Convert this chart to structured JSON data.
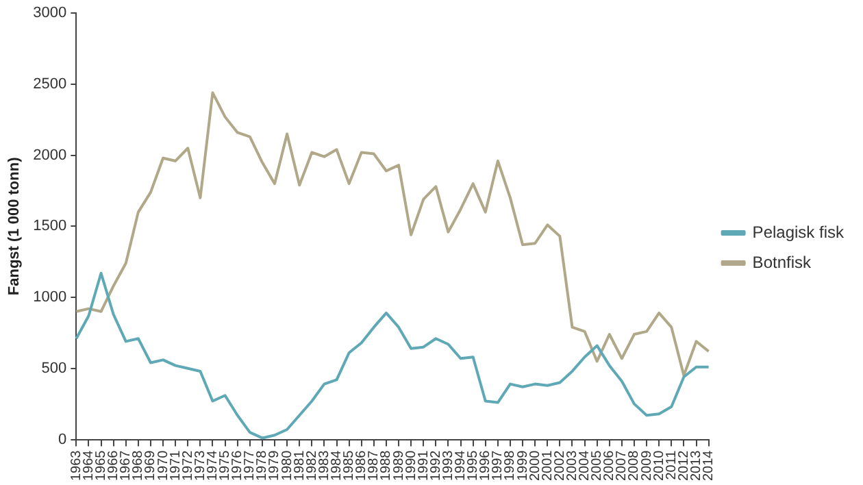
{
  "chart_data": {
    "type": "line",
    "ylabel": "Fangst (1 000 tonn)",
    "categories": [
      "1963",
      "1964",
      "1965",
      "1966",
      "1967",
      "1968",
      "1969",
      "1970",
      "1971",
      "1972",
      "1973",
      "1974",
      "1975",
      "1976",
      "1977",
      "1978",
      "1979",
      "1980",
      "1981",
      "1982",
      "1983",
      "1984",
      "1985",
      "1986",
      "1987",
      "1988",
      "1989",
      "1990",
      "1991",
      "1992",
      "1993",
      "1994",
      "1995",
      "1996",
      "1997",
      "1998",
      "1999",
      "2000",
      "2001",
      "2002",
      "2003",
      "2004",
      "2005",
      "2006",
      "2007",
      "2008",
      "2009",
      "2010",
      "2011",
      "2012",
      "2013",
      "2014"
    ],
    "series": [
      {
        "name": "Pelagisk fisk",
        "color": "#5fa8b5",
        "values": [
          710,
          870,
          1170,
          880,
          690,
          710,
          540,
          560,
          520,
          500,
          480,
          270,
          310,
          170,
          50,
          10,
          30,
          70,
          170,
          270,
          390,
          420,
          610,
          680,
          790,
          890,
          790,
          640,
          650,
          710,
          670,
          570,
          580,
          270,
          260,
          390,
          370,
          390,
          380,
          400,
          480,
          580,
          660,
          520,
          410,
          250,
          170,
          180,
          230,
          440,
          510,
          510
        ]
      },
      {
        "name": "Botnfisk",
        "color": "#b0a888",
        "values": [
          900,
          920,
          900,
          1080,
          1240,
          1600,
          1740,
          1980,
          1960,
          2050,
          1700,
          2440,
          2270,
          2160,
          2130,
          1950,
          1800,
          2150,
          1790,
          2020,
          1990,
          2040,
          1800,
          2020,
          2010,
          1890,
          1930,
          1440,
          1690,
          1780,
          1460,
          1620,
          1800,
          1600,
          1960,
          1700,
          1370,
          1380,
          1510,
          1430,
          790,
          760,
          550,
          740,
          570,
          740,
          760,
          890,
          790,
          450,
          690,
          620
        ]
      }
    ],
    "ylim": [
      0,
      3000
    ],
    "yticks": [
      0,
      500,
      1000,
      1500,
      2000,
      2500,
      3000
    ],
    "grid": false,
    "legend": "right",
    "marker": "none",
    "line_style": "solid"
  }
}
